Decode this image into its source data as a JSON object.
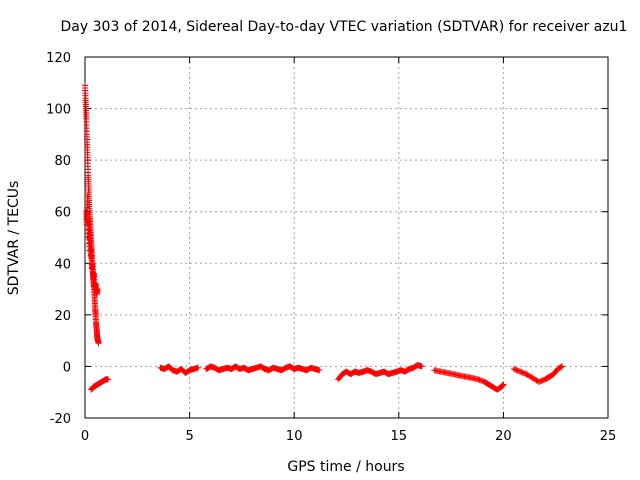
{
  "chart_data": {
    "type": "scatter",
    "title": "Day 303 of 2014, Sidereal Day-to-day VTEC variation (SDTVAR) for receiver azu1",
    "xlabel": "GPS time / hours",
    "ylabel": "SDTVAR / TECUs",
    "xlim": [
      0,
      25
    ],
    "ylim": [
      -20,
      120
    ],
    "xticks": [
      0,
      5,
      10,
      15,
      20,
      25
    ],
    "yticks": [
      -20,
      0,
      20,
      40,
      60,
      80,
      100,
      120
    ],
    "grid": true,
    "marker": "plus",
    "color": "#ff0000",
    "series": [
      {
        "name": "SDTVAR",
        "segments": [
          {
            "x": [
              0.0,
              0.03,
              0.05,
              0.07,
              0.09,
              0.11,
              0.13,
              0.15,
              0.17,
              0.19,
              0.21,
              0.23,
              0.25,
              0.27,
              0.29,
              0.31,
              0.33,
              0.35,
              0.37,
              0.39,
              0.41,
              0.43,
              0.45,
              0.47,
              0.49,
              0.51,
              0.53,
              0.55,
              0.57,
              0.59,
              0.62,
              0.65
            ],
            "y": [
              109,
              104,
              100,
              96,
              90,
              85,
              80,
              74,
              70,
              66,
              62,
              58,
              55,
              52,
              49,
              46,
              43,
              40,
              37,
              35,
              33,
              31,
              28,
              25,
              22,
              20,
              17,
              15,
              13,
              11,
              10,
              9
            ]
          },
          {
            "x": [
              0.05,
              0.08,
              0.12,
              0.15,
              0.18,
              0.2,
              0.22,
              0.25,
              0.28,
              0.3,
              0.33,
              0.36,
              0.4,
              0.44,
              0.48,
              0.52,
              0.56,
              0.6
            ],
            "y": [
              60,
              55,
              66,
              50,
              58,
              45,
              52,
              48,
              42,
              46,
              38,
              40,
              34,
              36,
              30,
              32,
              28,
              30
            ]
          },
          {
            "x": [
              0.3,
              0.4,
              0.5,
              0.6,
              0.7,
              0.8,
              0.9,
              1.0,
              1.1
            ],
            "y": [
              -9,
              -8,
              -7.5,
              -7,
              -6.5,
              -6,
              -5.5,
              -5,
              -5
            ]
          },
          {
            "x": [
              3.6,
              3.8,
              4.0,
              4.2,
              4.4,
              4.6,
              4.8,
              5.0,
              5.2,
              5.4
            ],
            "y": [
              -0.5,
              -1,
              0,
              -1.5,
              -2,
              -1,
              -2.5,
              -1.5,
              -1,
              -0.5
            ]
          },
          {
            "x": [
              5.8,
              6.0,
              6.2,
              6.4,
              6.6,
              6.8,
              7.0,
              7.2,
              7.4,
              7.6,
              7.8,
              8.0,
              8.2,
              8.4,
              8.6,
              8.8,
              9.0,
              9.2,
              9.4,
              9.6,
              9.8,
              10.0,
              10.2,
              10.4,
              10.6,
              10.8,
              11.0,
              11.2
            ],
            "y": [
              -1,
              0,
              -0.5,
              -1.5,
              -1,
              -0.5,
              -1,
              0,
              -1,
              -0.5,
              -1.5,
              -1,
              -0.5,
              0,
              -1,
              -1.5,
              -0.5,
              -1,
              -1.5,
              -0.5,
              0,
              -1,
              -0.5,
              -1,
              -1.5,
              -0.5,
              -1,
              -1.5
            ]
          },
          {
            "x": [
              12.1,
              12.3,
              12.5,
              12.7,
              12.9,
              13.1,
              13.3,
              13.5,
              13.7,
              13.9,
              14.1,
              14.3,
              14.5,
              14.7,
              14.9,
              15.1,
              15.3,
              15.5,
              15.7,
              15.9,
              16.1
            ],
            "y": [
              -5,
              -3,
              -2,
              -3,
              -2,
              -2.5,
              -2,
              -1.5,
              -2,
              -3,
              -2.5,
              -2,
              -3,
              -2.5,
              -2,
              -1.5,
              -2,
              -1,
              -0.5,
              0.5,
              0
            ]
          },
          {
            "x": [
              16.7,
              17.0,
              17.3,
              17.6,
              17.9,
              18.2,
              18.5,
              18.8,
              19.1,
              19.3,
              19.5,
              19.7,
              19.9,
              20.0
            ],
            "y": [
              -1.5,
              -2,
              -2.5,
              -3,
              -3.5,
              -4,
              -4.5,
              -5,
              -6,
              -7,
              -8,
              -9,
              -8,
              -7
            ]
          },
          {
            "x": [
              20.5,
              20.8,
              21.1,
              21.4,
              21.7,
              22.0,
              22.2,
              22.4,
              22.6,
              22.8
            ],
            "y": [
              -1,
              -2,
              -3,
              -4.5,
              -6,
              -5,
              -4,
              -3,
              -1,
              0
            ]
          }
        ]
      }
    ]
  }
}
